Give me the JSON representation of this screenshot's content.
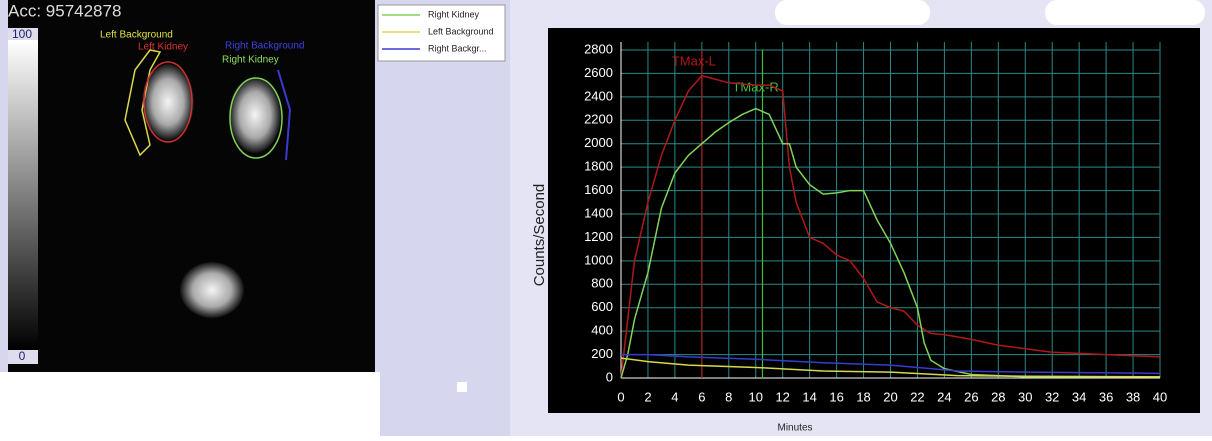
{
  "image_panel": {
    "acc": "Acc: 95742878",
    "scale_max": "100",
    "scale_min": "0"
  },
  "legend": [
    {
      "label": "Right Kidney",
      "color": "#7fd35a"
    },
    {
      "label": "Left Background",
      "color": "#d8d84a"
    },
    {
      "label": "Right Backgr...",
      "color": "#3a3ad0"
    }
  ],
  "chart_data": {
    "type": "line",
    "y_label": "Counts/Second",
    "x_label": "Minutes",
    "xlim": [
      0,
      40
    ],
    "ylim": [
      0,
      2800
    ],
    "xticks": [
      0,
      2,
      4,
      6,
      8,
      10,
      12,
      14,
      16,
      18,
      20,
      22,
      24,
      26,
      28,
      30,
      32,
      34,
      36,
      38,
      40
    ],
    "yticks": [
      0,
      200,
      400,
      600,
      800,
      1000,
      1200,
      1400,
      1600,
      1800,
      2000,
      2200,
      2400,
      2600,
      2800
    ],
    "grid": true,
    "series": [
      {
        "name": "Left Kidney",
        "color": "#b01818",
        "x": [
          0,
          0.3,
          0.6,
          1,
          2,
          3,
          4,
          5,
          6,
          7,
          8,
          9,
          10,
          11,
          12,
          12.5,
          13,
          14,
          15,
          16,
          17,
          18,
          19,
          20,
          21,
          22,
          23,
          24,
          26,
          28,
          30,
          32,
          34,
          36,
          38,
          40
        ],
        "values": [
          0,
          300,
          600,
          1000,
          1500,
          1900,
          2200,
          2450,
          2580,
          2550,
          2520,
          2510,
          2500,
          2500,
          2450,
          1800,
          1500,
          1200,
          1150,
          1050,
          1000,
          850,
          650,
          600,
          570,
          450,
          380,
          370,
          330,
          280,
          250,
          220,
          210,
          200,
          190,
          180
        ]
      },
      {
        "name": "Right Kidney",
        "color": "#7fd35a",
        "x": [
          0,
          0.5,
          1,
          2,
          3,
          4,
          5,
          6,
          7,
          8,
          9,
          10,
          11,
          12,
          12.5,
          13,
          14,
          15,
          16,
          17,
          18,
          19,
          20,
          21,
          22,
          22.5,
          23,
          24,
          26,
          28,
          30,
          35,
          40
        ],
        "values": [
          0,
          200,
          500,
          900,
          1450,
          1750,
          1900,
          2000,
          2100,
          2180,
          2250,
          2300,
          2250,
          2000,
          2000,
          1800,
          1650,
          1570,
          1580,
          1600,
          1600,
          1350,
          1150,
          900,
          600,
          300,
          150,
          80,
          30,
          20,
          10,
          10,
          10
        ]
      },
      {
        "name": "Left Background",
        "color": "#d8d84a",
        "x": [
          0,
          2,
          5,
          10,
          15,
          20,
          25,
          30,
          40
        ],
        "values": [
          170,
          140,
          110,
          90,
          60,
          50,
          20,
          15,
          10
        ]
      },
      {
        "name": "Right Background",
        "color": "#3a3ad0",
        "x": [
          0,
          2,
          5,
          10,
          15,
          20,
          25,
          30,
          40
        ],
        "values": [
          200,
          200,
          180,
          160,
          130,
          110,
          60,
          50,
          40
        ]
      }
    ],
    "markers": [
      {
        "label": "TMax-L",
        "x": 6,
        "color": "#b01818"
      },
      {
        "label": "TMax-R",
        "x": 10.5,
        "color": "#3cc03c"
      }
    ]
  }
}
